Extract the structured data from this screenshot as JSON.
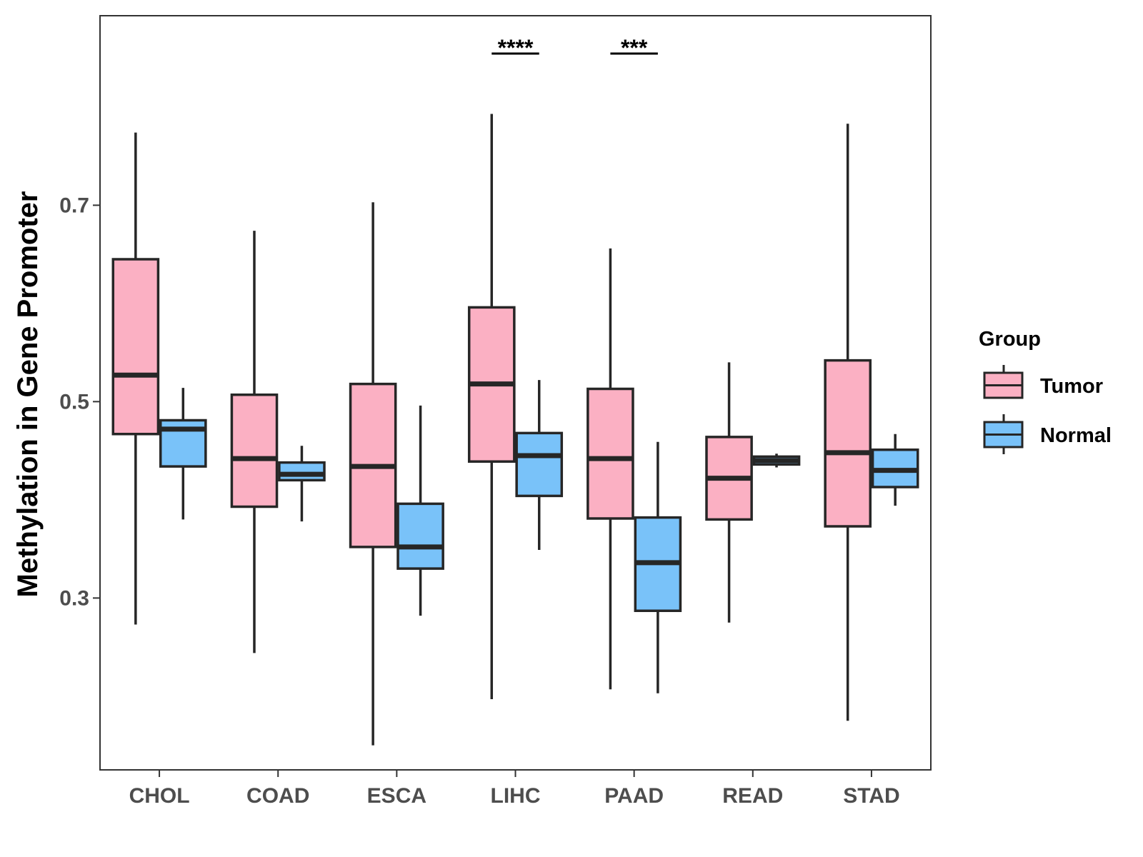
{
  "chart_data": {
    "type": "boxplot",
    "title": "",
    "xlabel": "",
    "ylabel": "Methylation in Gene Promoter",
    "ylim": [
      0.125,
      0.893
    ],
    "yticks": [
      0.3,
      0.5,
      0.7
    ],
    "ytick_labels": [
      "0.3",
      "0.5",
      "0.7"
    ],
    "grid": false,
    "legend": {
      "title": "Group",
      "position": "right",
      "entries": [
        {
          "name": "Tumor",
          "color": "#FBB0C3"
        },
        {
          "name": "Normal",
          "color": "#79C2F9"
        }
      ]
    },
    "categories": [
      "CHOL",
      "COAD",
      "ESCA",
      "LIHC",
      "PAAD",
      "READ",
      "STAD"
    ],
    "series": [
      {
        "name": "Tumor",
        "color": "#FBB0C3",
        "boxes": [
          {
            "category": "CHOL",
            "min": 0.273,
            "q1": 0.467,
            "median": 0.527,
            "q3": 0.645,
            "max": 0.774
          },
          {
            "category": "COAD",
            "min": 0.244,
            "q1": 0.393,
            "median": 0.442,
            "q3": 0.507,
            "max": 0.674
          },
          {
            "category": "ESCA",
            "min": 0.15,
            "q1": 0.352,
            "median": 0.434,
            "q3": 0.518,
            "max": 0.703
          },
          {
            "category": "LIHC",
            "min": 0.197,
            "q1": 0.439,
            "median": 0.518,
            "q3": 0.596,
            "max": 0.793
          },
          {
            "category": "PAAD",
            "min": 0.207,
            "q1": 0.381,
            "median": 0.442,
            "q3": 0.513,
            "max": 0.656
          },
          {
            "category": "READ",
            "min": 0.275,
            "q1": 0.38,
            "median": 0.422,
            "q3": 0.464,
            "max": 0.54
          },
          {
            "category": "STAD",
            "min": 0.175,
            "q1": 0.373,
            "median": 0.448,
            "q3": 0.542,
            "max": 0.783
          }
        ]
      },
      {
        "name": "Normal",
        "color": "#79C2F9",
        "boxes": [
          {
            "category": "CHOL",
            "min": 0.38,
            "q1": 0.434,
            "median": 0.472,
            "q3": 0.481,
            "max": 0.514
          },
          {
            "category": "COAD",
            "min": 0.378,
            "q1": 0.42,
            "median": 0.426,
            "q3": 0.438,
            "max": 0.455
          },
          {
            "category": "ESCA",
            "min": 0.282,
            "q1": 0.33,
            "median": 0.352,
            "q3": 0.396,
            "max": 0.496
          },
          {
            "category": "LIHC",
            "min": 0.349,
            "q1": 0.404,
            "median": 0.445,
            "q3": 0.468,
            "max": 0.522
          },
          {
            "category": "PAAD",
            "min": 0.203,
            "q1": 0.287,
            "median": 0.336,
            "q3": 0.382,
            "max": 0.459
          },
          {
            "category": "READ",
            "min": 0.433,
            "q1": 0.436,
            "median": 0.44,
            "q3": 0.444,
            "max": 0.447
          },
          {
            "category": "STAD",
            "min": 0.394,
            "q1": 0.413,
            "median": 0.43,
            "q3": 0.451,
            "max": 0.467
          }
        ]
      }
    ],
    "annotations": [
      {
        "category": "LIHC",
        "label": "****"
      },
      {
        "category": "PAAD",
        "label": "***"
      }
    ]
  }
}
